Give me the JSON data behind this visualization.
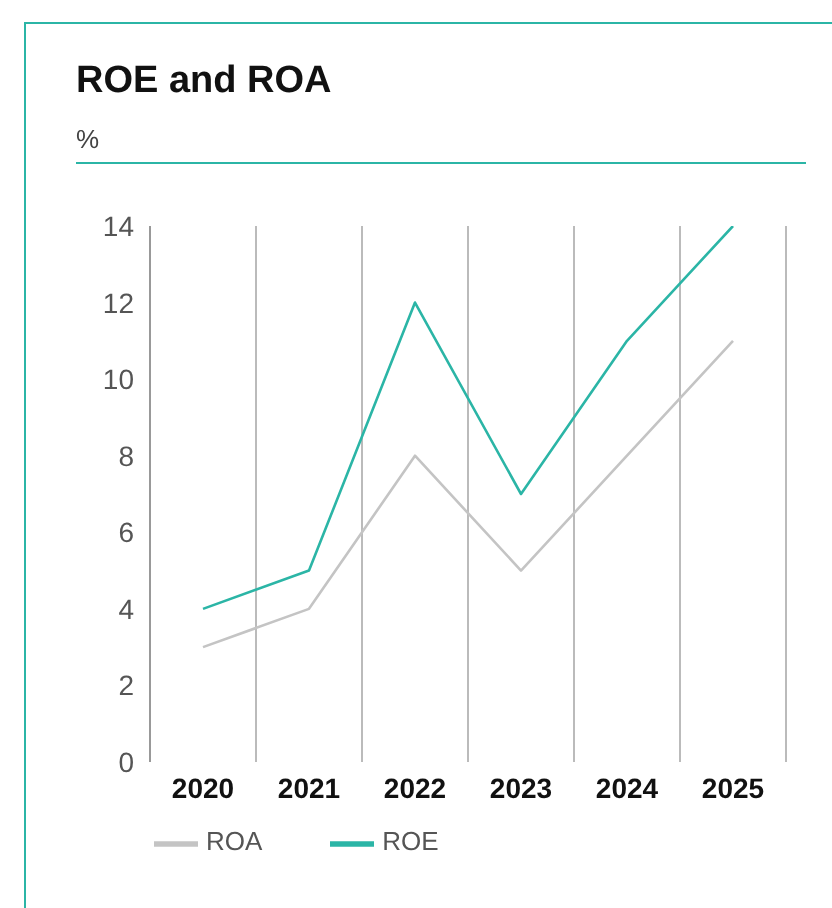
{
  "chart_data": {
    "type": "line",
    "title": "ROE and ROA",
    "ylabel": "%",
    "categories": [
      "2020",
      "2021",
      "2022",
      "2023",
      "2024",
      "2025"
    ],
    "series": [
      {
        "name": "ROA",
        "color": "#c4c4c4",
        "values": [
          3,
          4,
          8,
          5,
          8,
          11
        ]
      },
      {
        "name": "ROE",
        "color": "#2bb5a6",
        "values": [
          4,
          5,
          12,
          7,
          11,
          14
        ]
      }
    ],
    "ylim": [
      0,
      14
    ],
    "yticks": [
      0,
      2,
      4,
      6,
      8,
      10,
      12,
      14
    ],
    "grid": "x",
    "legend": "bottom left",
    "marker": "none",
    "line_style": "solid"
  }
}
